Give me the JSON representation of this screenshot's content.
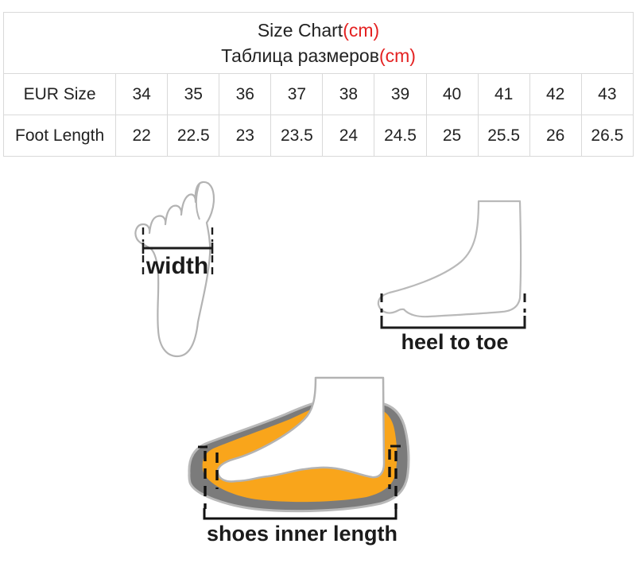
{
  "header": {
    "title_en": "Size Chart",
    "title_en_unit": "(cm)",
    "title_ru": "Таблица размеров",
    "title_ru_unit": "(cm)"
  },
  "table": {
    "row1_label": "EUR Size",
    "row2_label": "Foot Length",
    "eur_sizes": [
      "34",
      "35",
      "36",
      "37",
      "38",
      "39",
      "40",
      "41",
      "42",
      "43"
    ],
    "foot_lengths": [
      "22",
      "22.5",
      "23",
      "23.5",
      "24",
      "24.5",
      "25",
      "25.5",
      "26",
      "26.5"
    ]
  },
  "diagram_labels": {
    "width": "width",
    "heel_to_toe": "heel to toe",
    "inner_length": "shoes inner length"
  },
  "colors": {
    "accent_red": "#e42222",
    "text_black": "#222222",
    "foot_outline_gray": "#b3b3b3",
    "shoe_sole_gray": "#7b7b7b",
    "shoe_lining_orange": "#f9a51b",
    "table_border_gray": "#d9d9d9"
  }
}
